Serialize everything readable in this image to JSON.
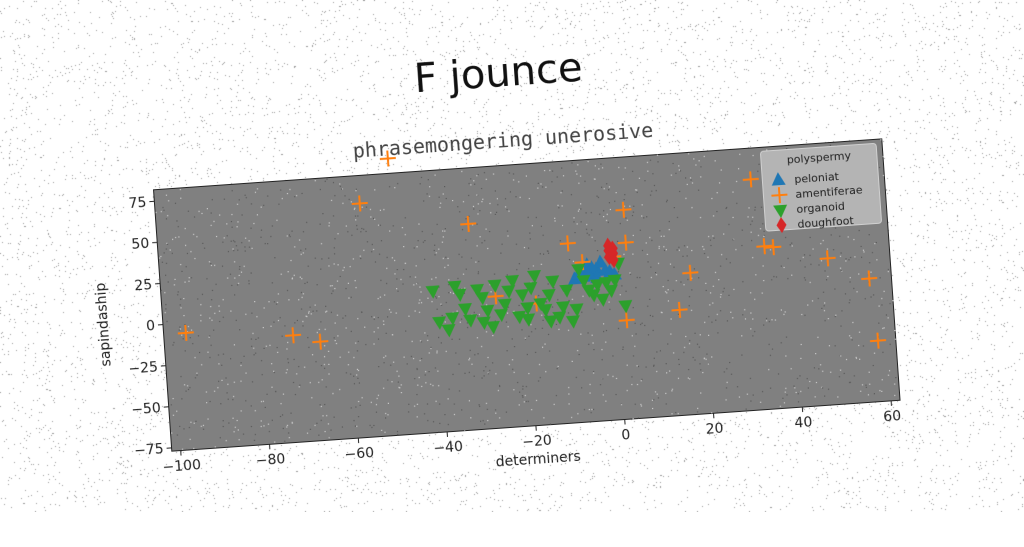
{
  "chart_data": {
    "type": "scatter",
    "title": "F jounce",
    "subtitle": "phrasemongering unerosive",
    "xlabel": "determiners",
    "ylabel": "sapindaship",
    "xlim": [
      -102,
      62
    ],
    "ylim": [
      -77,
      82
    ],
    "xticks": [
      -100,
      -80,
      -60,
      -40,
      -20,
      0,
      20,
      40,
      60
    ],
    "yticks": [
      -75,
      -50,
      -25,
      0,
      25,
      50,
      75
    ],
    "grid": false,
    "legend": {
      "title": "polyspermy",
      "placement": "top-right"
    },
    "background": "#808080",
    "series": [
      {
        "name": "peloniat",
        "marker": "triangle-up",
        "color": "#1f77b4",
        "points": [
          [
            -9,
            10
          ],
          [
            -8,
            13
          ],
          [
            -7,
            15
          ],
          [
            -6,
            18
          ],
          [
            -5,
            12
          ],
          [
            -4,
            15
          ],
          [
            -3,
            19
          ],
          [
            -2,
            14
          ],
          [
            -1,
            13
          ],
          [
            0,
            11
          ],
          [
            -7,
            11
          ],
          [
            -5,
            16
          ],
          [
            -4,
            10
          ],
          [
            -6,
            13
          ]
        ]
      },
      {
        "name": "amentiferae",
        "marker": "plus",
        "color": "#ff7f0e",
        "points": [
          [
            -97,
            -6
          ],
          [
            -73,
            -12
          ],
          [
            -67,
            -17
          ],
          [
            -56,
            65
          ],
          [
            -49,
            91
          ],
          [
            -32,
            48
          ],
          [
            -27,
            3
          ],
          [
            -18,
            -3
          ],
          [
            -10,
            32
          ],
          [
            -7,
            20
          ],
          [
            0,
            22
          ],
          [
            3,
            30
          ],
          [
            3,
            50
          ],
          [
            2,
            -17
          ],
          [
            14,
            -13
          ],
          [
            17,
            9
          ],
          [
            32,
            63
          ],
          [
            34,
            22
          ],
          [
            36,
            21
          ],
          [
            48,
            12
          ],
          [
            57,
            -2
          ],
          [
            58,
            -40
          ]
        ]
      },
      {
        "name": "organoid",
        "marker": "triangle-down",
        "color": "#2ca02c",
        "points": [
          [
            -41,
            9
          ],
          [
            -40,
            -10
          ],
          [
            -38,
            -15
          ],
          [
            -37,
            -8
          ],
          [
            -35,
            6
          ],
          [
            -34,
            -3
          ],
          [
            -33,
            -10
          ],
          [
            -31,
            8
          ],
          [
            -30,
            3
          ],
          [
            -29,
            -5
          ],
          [
            -28,
            -15
          ],
          [
            -27,
            10
          ],
          [
            -26,
            -8
          ],
          [
            -25,
            -2
          ],
          [
            -24,
            6
          ],
          [
            -23,
            12
          ],
          [
            -22,
            -10
          ],
          [
            -21,
            3
          ],
          [
            -20,
            -5
          ],
          [
            -19,
            7
          ],
          [
            -18,
            14
          ],
          [
            -17,
            -3
          ],
          [
            -16,
            -7
          ],
          [
            -15,
            2
          ],
          [
            -14,
            10
          ],
          [
            -13,
            -12
          ],
          [
            -12,
            -6
          ],
          [
            -11,
            4
          ],
          [
            -10,
            -15
          ],
          [
            -9,
            -8
          ],
          [
            -7,
            9
          ],
          [
            -6,
            3
          ],
          [
            -5,
            0
          ],
          [
            -4,
            6
          ],
          [
            -3,
            -3
          ],
          [
            -2,
            7
          ],
          [
            -1,
            2
          ],
          [
            0,
            8
          ],
          [
            1,
            18
          ],
          [
            2,
            -8
          ],
          [
            -36,
            11
          ],
          [
            -20,
            -12
          ],
          [
            -8,
            16
          ],
          [
            -15,
            -14
          ],
          [
            -30,
            -12
          ]
        ]
      },
      {
        "name": "doughfoot",
        "marker": "diamond",
        "color": "#d62728",
        "points": [
          [
            -1,
            22
          ],
          [
            -1,
            26
          ],
          [
            0,
            24
          ],
          [
            -1,
            29
          ],
          [
            0,
            20
          ],
          [
            0,
            27
          ]
        ]
      }
    ]
  }
}
